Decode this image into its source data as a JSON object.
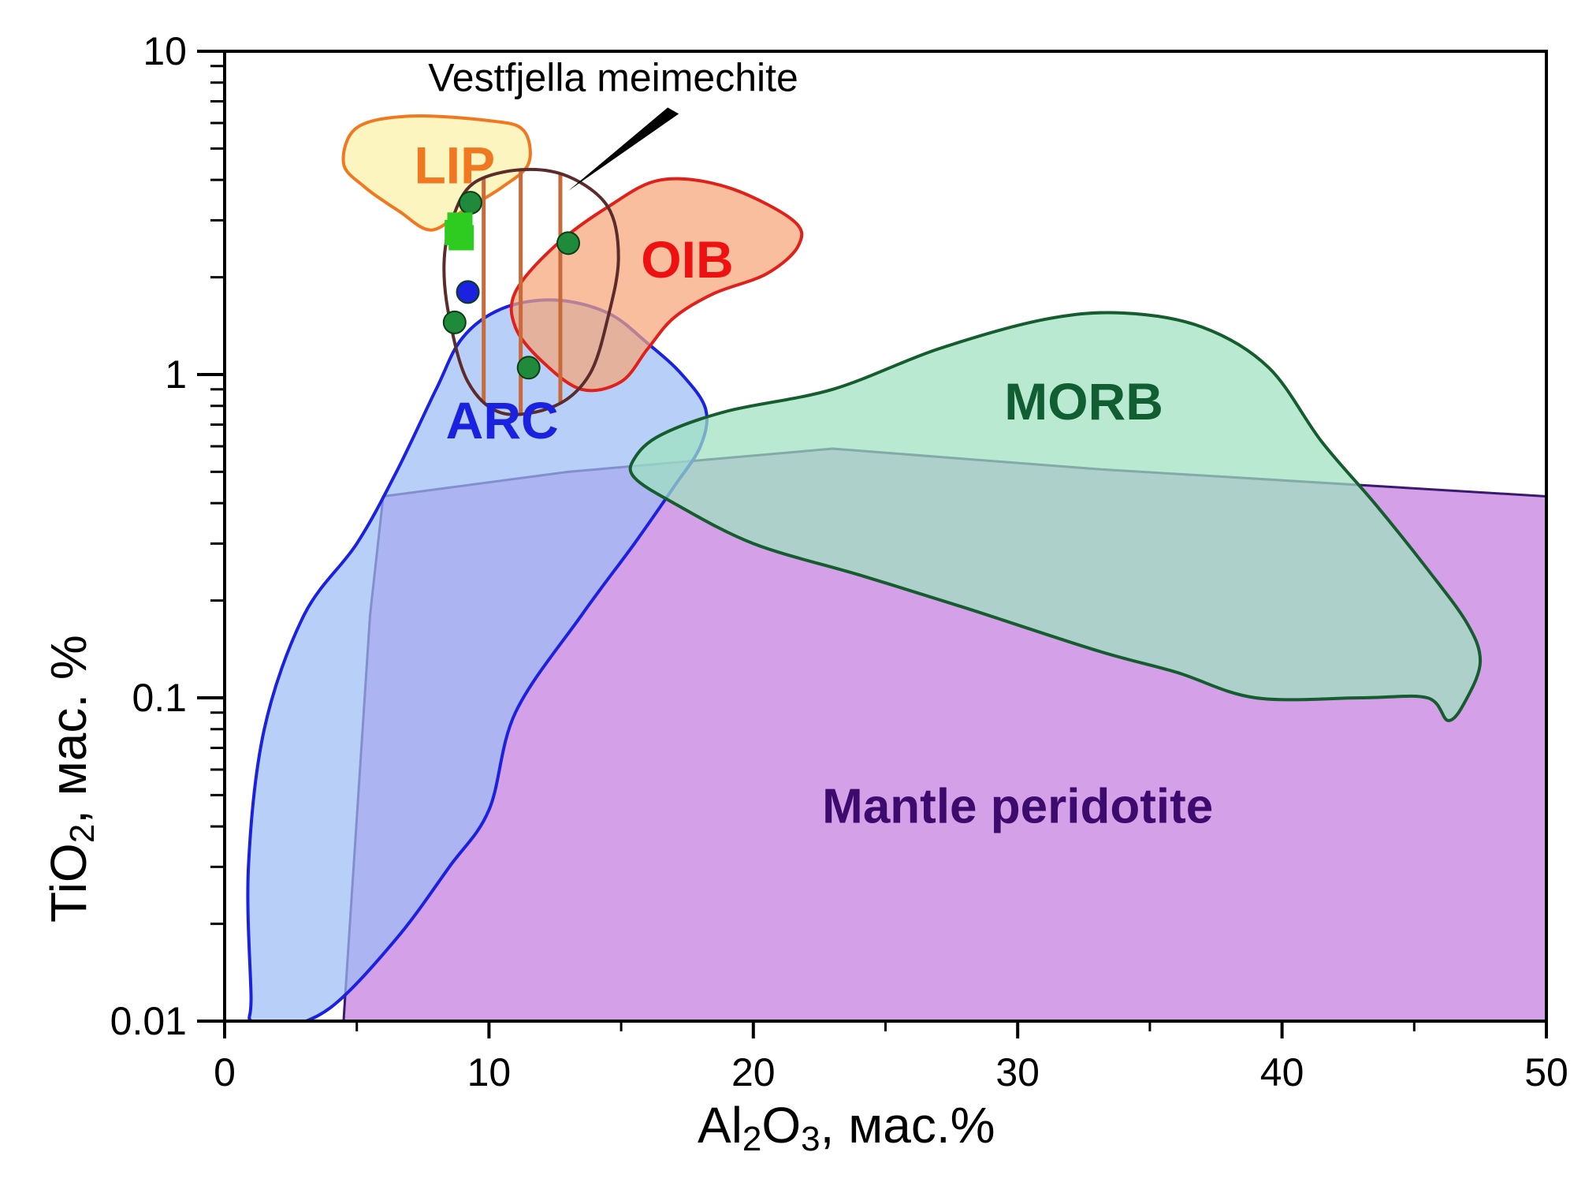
{
  "chart_data": {
    "type": "scatter",
    "title": "",
    "x_axis": {
      "label_main": "Al",
      "label_sub1": "2",
      "label_mid": "O",
      "label_sub2": "3",
      "label_unit": ", мас.%",
      "range": [
        0,
        50
      ],
      "ticks": [
        0,
        10,
        20,
        30,
        40,
        50
      ],
      "tick_labels": [
        "0",
        "10",
        "20",
        "30",
        "40",
        "50"
      ]
    },
    "y_axis": {
      "label_main": "TiO",
      "label_sub": "2",
      "label_unit": ", мас. %",
      "scale": "log",
      "range": [
        0.01,
        10
      ],
      "ticks": [
        0.01,
        0.1,
        1,
        10
      ],
      "tick_labels": [
        "0.01",
        "0.1",
        "1",
        "10"
      ]
    },
    "fields": [
      {
        "name": "Mantle peridotite",
        "fill": "#d4a0e8",
        "stroke": "#3a1a6e",
        "label_color": "#3d0a6e",
        "label_at": [
          30,
          0.045
        ],
        "points": [
          [
            4.5,
            0.01
          ],
          [
            5.5,
            0.18
          ],
          [
            6,
            0.42
          ],
          [
            13,
            0.5
          ],
          [
            23,
            0.59
          ],
          [
            33,
            0.51
          ],
          [
            50,
            0.42
          ],
          [
            50,
            0.01
          ]
        ]
      },
      {
        "name": "ARC",
        "fill": "#9dbcf5",
        "stroke": "#1a22e0",
        "label_color": "#1a22e0",
        "label_at": [
          10.5,
          0.7
        ],
        "points": [
          [
            1,
            0.012
          ],
          [
            0.9,
            0.03
          ],
          [
            1.5,
            0.08
          ],
          [
            3,
            0.18
          ],
          [
            5,
            0.3
          ],
          [
            6.5,
            0.5
          ],
          [
            8,
            0.9
          ],
          [
            9,
            1.3
          ],
          [
            10.5,
            1.6
          ],
          [
            12.5,
            1.7
          ],
          [
            14.5,
            1.55
          ],
          [
            16,
            1.25
          ],
          [
            17.3,
            1.0
          ],
          [
            18.2,
            0.78
          ],
          [
            18,
            0.6
          ],
          [
            17,
            0.45
          ],
          [
            15.5,
            0.3
          ],
          [
            13.5,
            0.18
          ],
          [
            11,
            0.09
          ],
          [
            10,
            0.045
          ],
          [
            8.5,
            0.03
          ],
          [
            6.5,
            0.018
          ],
          [
            4,
            0.011
          ],
          [
            2,
            0.0095
          ],
          [
            1,
            0.01
          ]
        ]
      },
      {
        "name": "MORB",
        "fill": "#9ee2bf",
        "stroke": "#155c2e",
        "label_color": "#115e33",
        "label_at": [
          32.5,
          0.8
        ],
        "points": [
          [
            15.5,
            0.55
          ],
          [
            16.5,
            0.65
          ],
          [
            19,
            0.77
          ],
          [
            23,
            0.9
          ],
          [
            27,
            1.2
          ],
          [
            31,
            1.48
          ],
          [
            34,
            1.55
          ],
          [
            37,
            1.4
          ],
          [
            39.5,
            1.05
          ],
          [
            41.5,
            0.62
          ],
          [
            43.5,
            0.4
          ],
          [
            45.5,
            0.25
          ],
          [
            47,
            0.17
          ],
          [
            47.5,
            0.13
          ],
          [
            47,
            0.1
          ],
          [
            46.3,
            0.085
          ],
          [
            45.5,
            0.1
          ],
          [
            43,
            0.1
          ],
          [
            39,
            0.1
          ],
          [
            36,
            0.12
          ],
          [
            33,
            0.14
          ],
          [
            28,
            0.19
          ],
          [
            24,
            0.24
          ],
          [
            20,
            0.3
          ],
          [
            17,
            0.4
          ],
          [
            15.5,
            0.48
          ],
          [
            15.5,
            0.55
          ]
        ]
      },
      {
        "name": "OIB",
        "fill": "#f5a578",
        "stroke": "#e0201a",
        "label_color": "#ee1111",
        "label_at": [
          17.5,
          2.2
        ],
        "points": [
          [
            11,
            1.8
          ],
          [
            12.5,
            2.5
          ],
          [
            14.5,
            3.3
          ],
          [
            16.5,
            4.0
          ],
          [
            19,
            3.8
          ],
          [
            21.5,
            3.0
          ],
          [
            21.7,
            2.5
          ],
          [
            20.5,
            2.05
          ],
          [
            18.5,
            1.78
          ],
          [
            17,
            1.5
          ],
          [
            16,
            1.2
          ],
          [
            15,
            0.95
          ],
          [
            13.5,
            0.9
          ],
          [
            12,
            1.1
          ],
          [
            11,
            1.4
          ],
          [
            11,
            1.8
          ]
        ]
      },
      {
        "name": "LIP",
        "fill": "#fbf1a8",
        "stroke": "#f07820",
        "label_color": "#f07820",
        "label_at": [
          8.7,
          4.3
        ],
        "points": [
          [
            4.5,
            4.5
          ],
          [
            5,
            5.8
          ],
          [
            7,
            6.3
          ],
          [
            10,
            6.1
          ],
          [
            11.3,
            5.7
          ],
          [
            11.5,
            4.5
          ],
          [
            10.5,
            3.8
          ],
          [
            9,
            3.2
          ],
          [
            7.8,
            2.8
          ],
          [
            6.6,
            3.2
          ],
          [
            5.3,
            3.8
          ],
          [
            4.5,
            4.5
          ]
        ]
      }
    ],
    "vestfjella_outline": {
      "name": "Vestfjella meimechite",
      "stroke": "#5c2c2c",
      "hatch_color": "#c86a3a",
      "hatch_x": [
        9.8,
        11.2,
        12.7
      ],
      "label_at": [
        14.7,
        8.1
      ],
      "leader_from": [
        17,
        6.55
      ],
      "leader_to": [
        13,
        3.7
      ],
      "points": [
        [
          8.6,
          3.0
        ],
        [
          9.4,
          3.9
        ],
        [
          11.2,
          4.3
        ],
        [
          13,
          4.1
        ],
        [
          14.5,
          3.3
        ],
        [
          14.9,
          2.3
        ],
        [
          14.5,
          1.5
        ],
        [
          13.8,
          1.0
        ],
        [
          12.5,
          0.8
        ],
        [
          10.5,
          0.76
        ],
        [
          9.2,
          0.95
        ],
        [
          8.5,
          1.5
        ],
        [
          8.3,
          2.2
        ],
        [
          8.6,
          3.0
        ]
      ]
    },
    "series": [
      {
        "name": "green circles",
        "marker": "circle",
        "color": "#1e8a3a",
        "x": [
          9.3,
          13,
          8.7,
          11.5
        ],
        "y": [
          3.4,
          2.55,
          1.45,
          1.05
        ]
      },
      {
        "name": "blue circle",
        "marker": "circle",
        "color": "#1a22e0",
        "x": [
          9.2
        ],
        "y": [
          1.8
        ]
      },
      {
        "name": "green squares",
        "marker": "square",
        "color": "#2ecc20",
        "x": [
          8.9,
          8.95,
          8.8
        ],
        "y": [
          2.9,
          2.65,
          2.75
        ]
      }
    ]
  }
}
